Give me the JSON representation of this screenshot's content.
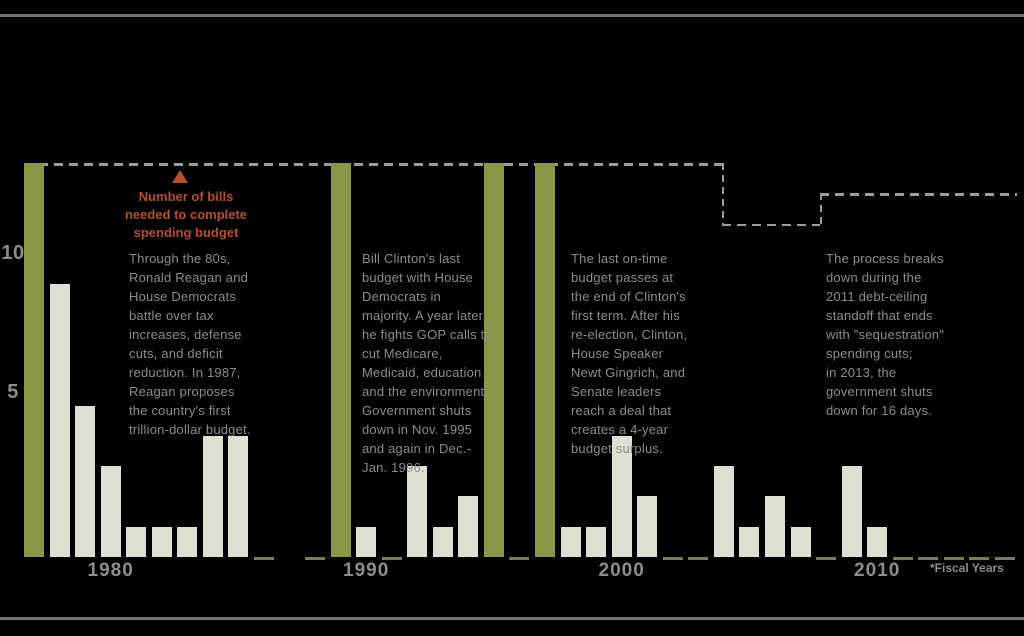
{
  "colors": {
    "background": "#000000",
    "bar_on_time": "#8b9746",
    "bar_regular": "#e0e0d2",
    "zero_dash": "#7d7a5c",
    "required_line": "#9c9c9c",
    "annotation_red": "#b5502c",
    "text_gray": "#8a8d90",
    "rule_gray": "#6f7173"
  },
  "annotation": {
    "label": "Number of bills\nneeded to complete\nspending budget"
  },
  "axis": {
    "y_ticks": [
      {
        "label": "10",
        "value": 10
      },
      {
        "label": "5",
        "value": 5
      }
    ],
    "x_ticks": [
      {
        "label": "1980",
        "year": 1980
      },
      {
        "label": "1990",
        "year": 1990
      },
      {
        "label": "2000",
        "year": 2000
      },
      {
        "label": "2010",
        "year": 2010
      }
    ],
    "footnote": "*Fiscal Years"
  },
  "notes": [
    {
      "id": "1980s",
      "text": "Through the 80s,\nRonald Reagan and\nHouse Democrats\nbattle over tax\nincreases, defense\ncuts, and deficit\nreduction. In 1987,\nReagan proposes\nthe country's first\ntrillion-dollar budget."
    },
    {
      "id": "1990s",
      "text": "Bill Clinton's last\nbudget with House\nDemocrats in\nmajority. A year later,\nhe fights GOP calls to\ncut Medicare,\nMedicaid, education\nand the environment.\nGovernment shuts\ndown in Nov. 1995\nand again in Dec.-\nJan. 1996."
    },
    {
      "id": "2000s",
      "text": "The last on-time\nbudget passes at\nthe end of Clinton's\nfirst term. After his\nre-election, Clinton,\nHouse Speaker\nNewt Gingrich, and\nSenate leaders\nreach a deal that\ncreates a 4-year\nbudget surplus."
    },
    {
      "id": "2010s",
      "text": "The process breaks\ndown during the\n2011 debt-ceiling\nstandoff that ends\nwith \"sequestration\"\nspending cuts;\nin 2013, the\ngovernment shuts\ndown for 16 days."
    }
  ],
  "chart_data": {
    "type": "bar",
    "title": "",
    "xlabel": "*Fiscal Years",
    "ylabel": "",
    "ylim": [
      0,
      13
    ],
    "grid": false,
    "legend_position": "none",
    "description": "Number of spending bills passed on time each fiscal year; olive bars mark years the full budget was completed on time; dashed stepped line shows number of bills needed to complete spending budget.",
    "bars": [
      {
        "year": 1977,
        "value": 13,
        "on_time": true,
        "zero_dash": false
      },
      {
        "year": 1978,
        "value": 9,
        "on_time": false,
        "zero_dash": false
      },
      {
        "year": 1979,
        "value": 5,
        "on_time": false,
        "zero_dash": false
      },
      {
        "year": 1980,
        "value": 3,
        "on_time": false,
        "zero_dash": false
      },
      {
        "year": 1981,
        "value": 1,
        "on_time": false,
        "zero_dash": false
      },
      {
        "year": 1982,
        "value": 1,
        "on_time": false,
        "zero_dash": false
      },
      {
        "year": 1983,
        "value": 1,
        "on_time": false,
        "zero_dash": false
      },
      {
        "year": 1984,
        "value": 4,
        "on_time": false,
        "zero_dash": false
      },
      {
        "year": 1985,
        "value": 4,
        "on_time": false,
        "zero_dash": false
      },
      {
        "year": 1986,
        "value": 0,
        "on_time": false,
        "zero_dash": true
      },
      {
        "year": 1987,
        "value": 0,
        "on_time": false,
        "zero_dash": false
      },
      {
        "year": 1988,
        "value": 0,
        "on_time": false,
        "zero_dash": true
      },
      {
        "year": 1989,
        "value": 13,
        "on_time": true,
        "zero_dash": false
      },
      {
        "year": 1990,
        "value": 1,
        "on_time": false,
        "zero_dash": false
      },
      {
        "year": 1991,
        "value": 0,
        "on_time": false,
        "zero_dash": true
      },
      {
        "year": 1992,
        "value": 3,
        "on_time": false,
        "zero_dash": false
      },
      {
        "year": 1993,
        "value": 1,
        "on_time": false,
        "zero_dash": false
      },
      {
        "year": 1994,
        "value": 2,
        "on_time": false,
        "zero_dash": false
      },
      {
        "year": 1995,
        "value": 13,
        "on_time": true,
        "zero_dash": false
      },
      {
        "year": 1996,
        "value": 0,
        "on_time": false,
        "zero_dash": true
      },
      {
        "year": 1997,
        "value": 13,
        "on_time": true,
        "zero_dash": false
      },
      {
        "year": 1998,
        "value": 1,
        "on_time": false,
        "zero_dash": false
      },
      {
        "year": 1999,
        "value": 1,
        "on_time": false,
        "zero_dash": false
      },
      {
        "year": 2000,
        "value": 4,
        "on_time": false,
        "zero_dash": false
      },
      {
        "year": 2001,
        "value": 2,
        "on_time": false,
        "zero_dash": false
      },
      {
        "year": 2002,
        "value": 0,
        "on_time": false,
        "zero_dash": true
      },
      {
        "year": 2003,
        "value": 0,
        "on_time": false,
        "zero_dash": true
      },
      {
        "year": 2004,
        "value": 3,
        "on_time": false,
        "zero_dash": false
      },
      {
        "year": 2005,
        "value": 1,
        "on_time": false,
        "zero_dash": false
      },
      {
        "year": 2006,
        "value": 2,
        "on_time": false,
        "zero_dash": false
      },
      {
        "year": 2007,
        "value": 1,
        "on_time": false,
        "zero_dash": false
      },
      {
        "year": 2008,
        "value": 0,
        "on_time": false,
        "zero_dash": true
      },
      {
        "year": 2009,
        "value": 3,
        "on_time": false,
        "zero_dash": false
      },
      {
        "year": 2010,
        "value": 1,
        "on_time": false,
        "zero_dash": false
      },
      {
        "year": 2011,
        "value": 0,
        "on_time": false,
        "zero_dash": true
      },
      {
        "year": 2012,
        "value": 0,
        "on_time": false,
        "zero_dash": true
      },
      {
        "year": 2013,
        "value": 0,
        "on_time": false,
        "zero_dash": true
      },
      {
        "year": 2014,
        "value": 0,
        "on_time": false,
        "zero_dash": true
      },
      {
        "year": 2015,
        "value": 0,
        "on_time": false,
        "zero_dash": true
      }
    ],
    "required_line": {
      "label": "Number of bills needed to complete spending budget",
      "segments": [
        {
          "value": 13,
          "from": 1977,
          "to": 2004.3
        },
        {
          "value": 11,
          "from": 2004.3,
          "to": 2008.15
        },
        {
          "value": 12,
          "from": 2008.15,
          "to": 2015.85
        }
      ]
    }
  }
}
